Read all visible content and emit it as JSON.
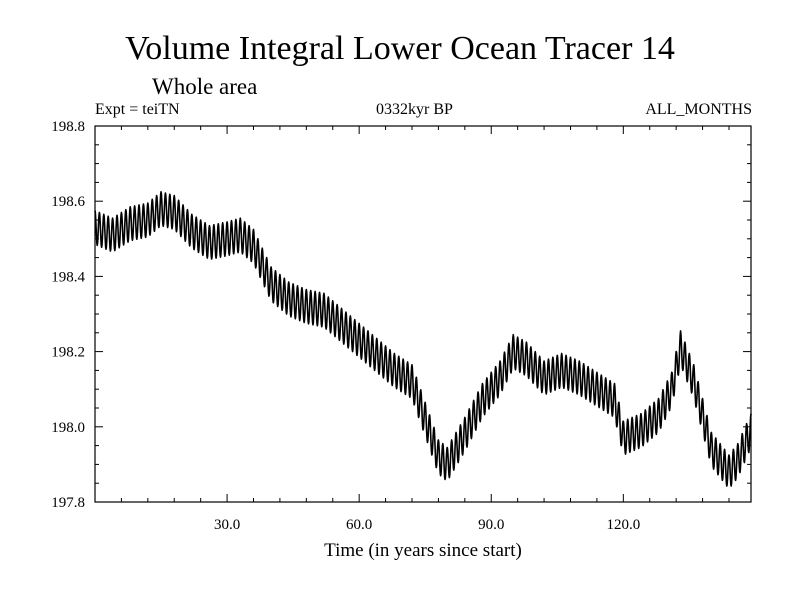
{
  "header": {
    "title": "Volume Integral Lower Ocean Tracer 14",
    "subtitle": "Whole area",
    "expt": "Expt = teiTN",
    "center_label": "0332kyr BP",
    "right_label": "ALL_MONTHS"
  },
  "chart_data": {
    "type": "line",
    "title": "Volume Integral Lower Ocean Tracer 14",
    "subtitle": "Whole area",
    "xlabel": "Time (in years since start)",
    "ylabel": "",
    "xlim": [
      0,
      149
    ],
    "ylim": [
      197.8,
      198.8
    ],
    "xticks": [
      30,
      60,
      90,
      120
    ],
    "xtick_labels": [
      "30.0",
      "60.0",
      "90.0",
      "120.0"
    ],
    "yticks": [
      197.8,
      198.0,
      198.2,
      198.4,
      198.6,
      198.8
    ],
    "ytick_labels": [
      "197.8",
      "198.0",
      "198.2",
      "198.4",
      "198.6",
      "198.8"
    ],
    "grid": false,
    "series": [
      {
        "name": "Lower Ocean Tracer 14",
        "seasonal_amplitude": 0.045,
        "x": [
          0,
          4,
          8,
          12,
          15,
          18,
          22,
          26,
          30,
          33,
          36,
          40,
          44,
          48,
          52,
          56,
          60,
          64,
          68,
          72,
          75,
          78,
          80,
          84,
          88,
          92,
          95,
          98,
          102,
          106,
          110,
          114,
          118,
          120,
          124,
          128,
          131,
          133,
          136,
          140,
          144,
          146,
          149
        ],
        "values": [
          198.53,
          198.51,
          198.54,
          198.55,
          198.58,
          198.57,
          198.52,
          198.49,
          198.5,
          198.51,
          198.48,
          198.38,
          198.34,
          198.32,
          198.31,
          198.27,
          198.23,
          198.19,
          198.15,
          198.12,
          198.02,
          197.92,
          197.9,
          197.98,
          198.07,
          198.13,
          198.2,
          198.18,
          198.13,
          198.15,
          198.13,
          198.1,
          198.07,
          197.97,
          197.99,
          198.03,
          198.1,
          198.21,
          198.12,
          197.94,
          197.88,
          197.91,
          197.99
        ]
      }
    ]
  }
}
